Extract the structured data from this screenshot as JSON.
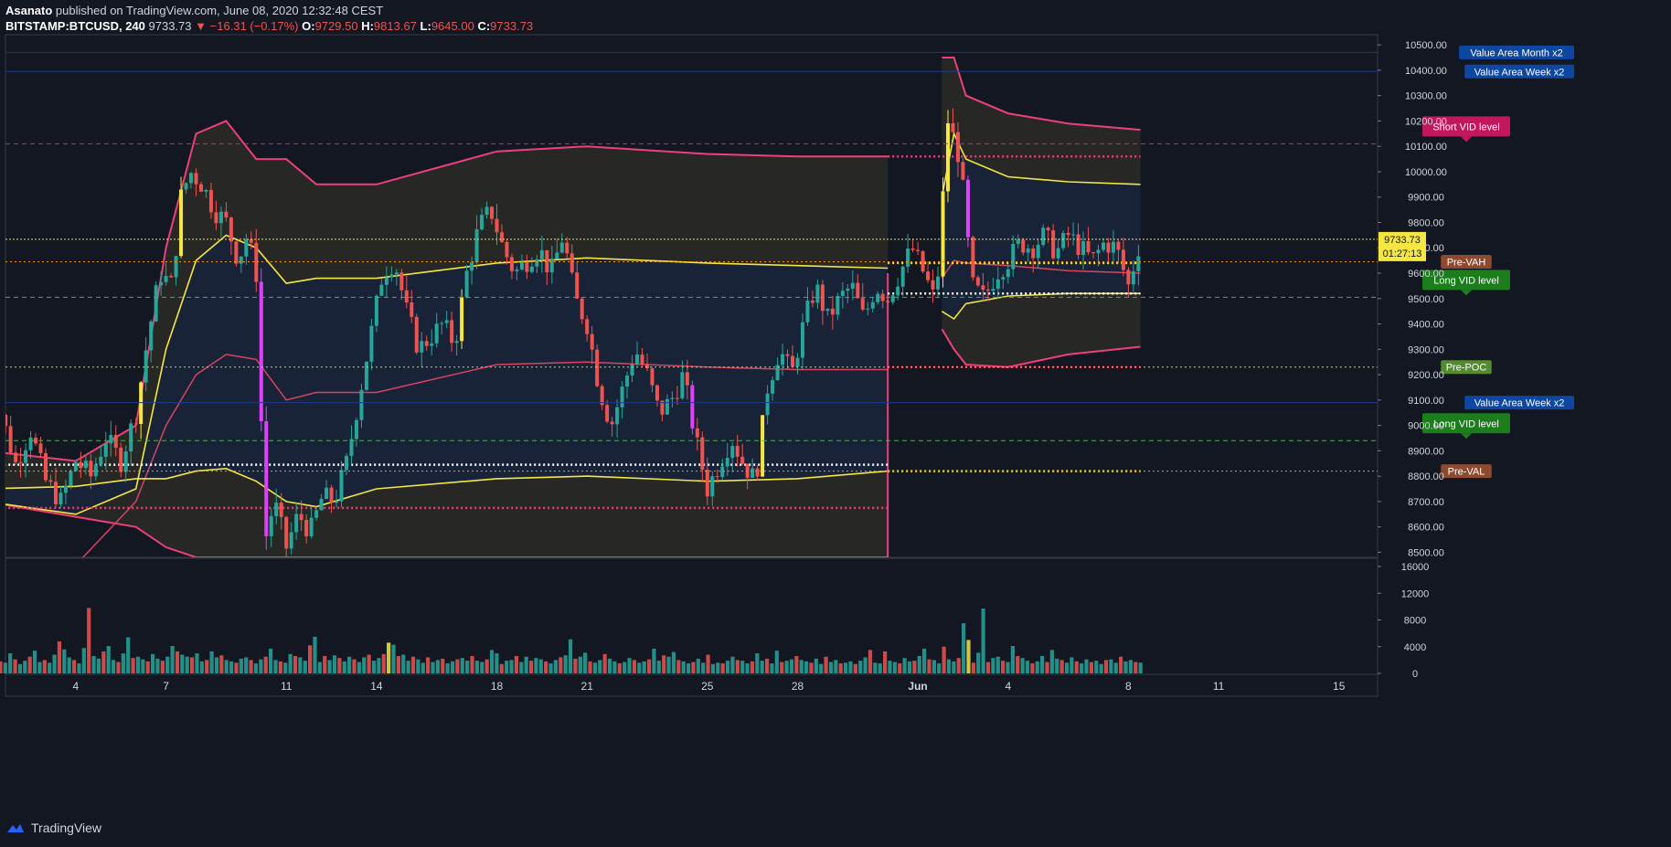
{
  "header": {
    "author": "Asanato",
    "published": "published on TradingView.com, June 08, 2020 12:32:48 CEST",
    "symbol": "BITSTAMP:BTCUSD, 240",
    "last": "9733.73",
    "change": "−16.31 (−0.17%)",
    "o_label": "O:",
    "o": "9729.50",
    "h_label": "H:",
    "h": "9813.67",
    "l_label": "L:",
    "l": "9645.00",
    "c_label": "C:",
    "c": "9733.73"
  },
  "footer": {
    "brand": "TradingView"
  },
  "price_tag": {
    "price": "9733.73",
    "countdown": "01:27:13"
  },
  "colors": {
    "background": "#131722",
    "bull": "#26a69a",
    "bear": "#ef5350",
    "magenta": "#e040fb",
    "yellow": "#f5e642",
    "band": "#ec407a",
    "vol_bull": "#26a69a",
    "vol_bear": "#ef5350"
  },
  "chart_data": {
    "type": "candlestick",
    "price_axis": {
      "ticks": [
        "10500.00",
        "10400.00",
        "10300.00",
        "10200.00",
        "10100.00",
        "10000.00",
        "9900.00",
        "9800.00",
        "9700.00",
        "9600.00",
        "9500.00",
        "9400.00",
        "9300.00",
        "9200.00",
        "9100.00",
        "9000.00",
        "8900.00",
        "8800.00",
        "8700.00",
        "8600.00",
        "8500.00"
      ],
      "range": [
        8480,
        10540
      ]
    },
    "volume_axis": {
      "ticks": [
        "16000",
        "12000",
        "8000",
        "4000",
        "0"
      ],
      "range": [
        0,
        16000
      ]
    },
    "time_axis": {
      "ticks": [
        "4",
        "7",
        "11",
        "14",
        "18",
        "21",
        "25",
        "28",
        "Jun",
        "4",
        "8",
        "11",
        "15"
      ],
      "tick_days": [
        4,
        7,
        11,
        14,
        18,
        21,
        25,
        28,
        32,
        35,
        39,
        42,
        46
      ]
    },
    "levels": [
      {
        "label": "Value Area Month x2",
        "price": 10470,
        "color": "#1e3a8a",
        "style": "solid"
      },
      {
        "label": "Value Area Week x2",
        "price": 10395,
        "color": "#1e3a8a",
        "style": "solid"
      },
      {
        "label": "Short VID level",
        "price": 10110,
        "color": "#e91e63",
        "style": "dashed"
      },
      {
        "label": "Pre-VAH",
        "price": 9645,
        "color": "#ff9800",
        "style": "dotted"
      },
      {
        "label": "Long VID level",
        "price": 9505,
        "color": "#4caf50",
        "style": "dashed"
      },
      {
        "label": "Pre-POC",
        "price": 9230,
        "color": "#cddc39",
        "style": "dotted"
      },
      {
        "label": "Value Area Week x2",
        "price": 9090,
        "color": "#1e3a8a",
        "style": "solid"
      },
      {
        "label": "Long VID level",
        "price": 8940,
        "color": "#4caf50",
        "style": "dashed"
      },
      {
        "label": "Pre-VAL",
        "price": 8820,
        "color": "#ff9800",
        "style": "dotted"
      }
    ],
    "label_styles": [
      {
        "bg": "#0d47a1",
        "fg": "#ffffff"
      },
      {
        "bg": "#0d47a1",
        "fg": "#ffffff"
      },
      {
        "bg": "#c2185b",
        "fg": "#ffffff"
      },
      {
        "bg": "#8d4a2e",
        "fg": "#ffffff"
      },
      {
        "bg": "#1b7d1b",
        "fg": "#ffffff"
      },
      {
        "bg": "#558b2f",
        "fg": "#ffffff"
      },
      {
        "bg": "#0d47a1",
        "fg": "#ffffff"
      },
      {
        "bg": "#1b7d1b",
        "fg": "#ffffff"
      },
      {
        "bg": "#8d4a2e",
        "fg": "#ffffff"
      }
    ],
    "month_period": {
      "start_day": 1.0,
      "end_day": 31.0,
      "upper_outer": [
        [
          1,
          8900
        ],
        [
          4,
          8860
        ],
        [
          6,
          9000
        ],
        [
          7,
          9700
        ],
        [
          8,
          10150
        ],
        [
          9,
          10200
        ],
        [
          10,
          10050
        ],
        [
          11,
          10050
        ],
        [
          12,
          9950
        ],
        [
          14,
          9950
        ],
        [
          18,
          10080
        ],
        [
          21,
          10100
        ],
        [
          25,
          10070
        ],
        [
          28,
          10060
        ],
        [
          31,
          10060
        ]
      ],
      "upper_inner": [
        [
          1,
          8700
        ],
        [
          4,
          8650
        ],
        [
          6,
          8750
        ],
        [
          7,
          9300
        ],
        [
          8,
          9650
        ],
        [
          9,
          9750
        ],
        [
          10,
          9700
        ],
        [
          11,
          9560
        ],
        [
          12,
          9580
        ],
        [
          14,
          9580
        ],
        [
          18,
          9640
        ],
        [
          21,
          9660
        ],
        [
          25,
          9640
        ],
        [
          28,
          9630
        ],
        [
          31,
          9620
        ]
      ],
      "mid": [
        [
          1,
          8300
        ],
        [
          4,
          8450
        ],
        [
          6,
          8700
        ],
        [
          7,
          9000
        ],
        [
          8,
          9200
        ],
        [
          9,
          9280
        ],
        [
          10,
          9260
        ],
        [
          11,
          9100
        ],
        [
          12,
          9130
        ],
        [
          14,
          9130
        ],
        [
          18,
          9240
        ],
        [
          21,
          9250
        ],
        [
          25,
          9230
        ],
        [
          28,
          9220
        ],
        [
          31,
          9220
        ]
      ],
      "lower_inner": [
        [
          1,
          8750
        ],
        [
          4,
          8760
        ],
        [
          6,
          8790
        ],
        [
          7,
          8790
        ],
        [
          8,
          8820
        ],
        [
          9,
          8830
        ],
        [
          10,
          8780
        ],
        [
          11,
          8700
        ],
        [
          12,
          8680
        ],
        [
          14,
          8750
        ],
        [
          18,
          8790
        ],
        [
          21,
          8800
        ],
        [
          25,
          8780
        ],
        [
          28,
          8790
        ],
        [
          31,
          8820
        ]
      ],
      "lower_outer": [
        [
          1,
          8700
        ],
        [
          4,
          8640
        ],
        [
          6,
          8600
        ],
        [
          7,
          8520
        ],
        [
          8,
          8480
        ],
        [
          9,
          8480
        ],
        [
          10,
          8480
        ],
        [
          11,
          8480
        ],
        [
          31,
          8480
        ]
      ]
    },
    "week_period": {
      "start_day": 32.8,
      "end_day": 39.4,
      "upper_outer": [
        [
          32.8,
          10450
        ],
        [
          33.2,
          10450
        ],
        [
          33.6,
          10300
        ],
        [
          35,
          10230
        ],
        [
          37,
          10190
        ],
        [
          39.4,
          10165
        ]
      ],
      "upper_inner": [
        [
          32.8,
          9900
        ],
        [
          33.2,
          10150
        ],
        [
          33.6,
          10050
        ],
        [
          35,
          9980
        ],
        [
          37,
          9960
        ],
        [
          39.4,
          9950
        ]
      ],
      "mid": [
        [
          32.8,
          9580
        ],
        [
          33.2,
          9650
        ],
        [
          33.6,
          9640
        ],
        [
          35,
          9630
        ],
        [
          37,
          9610
        ],
        [
          39.4,
          9600
        ]
      ],
      "lower_inner": [
        [
          32.8,
          9450
        ],
        [
          33.2,
          9420
        ],
        [
          33.6,
          9480
        ],
        [
          35,
          9510
        ],
        [
          37,
          9520
        ],
        [
          39.4,
          9520
        ]
      ],
      "lower_outer": [
        [
          32.8,
          9380
        ],
        [
          33.2,
          9300
        ],
        [
          33.6,
          9240
        ],
        [
          35,
          9230
        ],
        [
          37,
          9280
        ],
        [
          39.4,
          9310
        ]
      ]
    },
    "price_path": [
      [
        1,
        8920
      ],
      [
        1.5,
        9050
      ],
      [
        2,
        8850
      ],
      [
        2.5,
        8980
      ],
      [
        3,
        8780
      ],
      [
        3.5,
        8700
      ],
      [
        4,
        8860
      ],
      [
        4.5,
        8800
      ],
      [
        5,
        8950
      ],
      [
        5.5,
        8860
      ],
      [
        6,
        9050
      ],
      [
        6.4,
        9350
      ],
      [
        6.8,
        9600
      ],
      [
        7.2,
        9550
      ],
      [
        7.5,
        9900
      ],
      [
        7.8,
        10000
      ],
      [
        8.2,
        9950
      ],
      [
        8.6,
        9850
      ],
      [
        9,
        9800
      ],
      [
        9.4,
        9650
      ],
      [
        9.7,
        9750
      ],
      [
        10,
        9600
      ],
      [
        10.3,
        8550
      ],
      [
        10.6,
        8700
      ],
      [
        11,
        8520
      ],
      [
        11.4,
        8650
      ],
      [
        11.8,
        8580
      ],
      [
        12.2,
        8720
      ],
      [
        12.6,
        8700
      ],
      [
        13,
        8850
      ],
      [
        13.4,
        9100
      ],
      [
        13.8,
        9350
      ],
      [
        14.2,
        9600
      ],
      [
        14.6,
        9650
      ],
      [
        15,
        9450
      ],
      [
        15.4,
        9300
      ],
      [
        15.8,
        9350
      ],
      [
        16.2,
        9400
      ],
      [
        16.6,
        9320
      ],
      [
        17,
        9600
      ],
      [
        17.4,
        9780
      ],
      [
        17.8,
        9850
      ],
      [
        18.2,
        9700
      ],
      [
        18.6,
        9600
      ],
      [
        19,
        9650
      ],
      [
        19.4,
        9700
      ],
      [
        19.8,
        9600
      ],
      [
        20.2,
        9750
      ],
      [
        20.6,
        9500
      ],
      [
        21,
        9400
      ],
      [
        21.4,
        9150
      ],
      [
        21.8,
        9000
      ],
      [
        22.2,
        9150
      ],
      [
        22.6,
        9300
      ],
      [
        23,
        9200
      ],
      [
        23.4,
        9050
      ],
      [
        23.8,
        9100
      ],
      [
        24.2,
        9200
      ],
      [
        24.6,
        8950
      ],
      [
        25,
        8750
      ],
      [
        25.4,
        8850
      ],
      [
        25.8,
        8950
      ],
      [
        26.2,
        8850
      ],
      [
        26.6,
        8780
      ],
      [
        27,
        9150
      ],
      [
        27.4,
        9300
      ],
      [
        27.8,
        9200
      ],
      [
        28.2,
        9400
      ],
      [
        28.6,
        9550
      ],
      [
        29,
        9420
      ],
      [
        29.4,
        9500
      ],
      [
        29.8,
        9550
      ],
      [
        30.2,
        9420
      ],
      [
        30.6,
        9550
      ],
      [
        31,
        9500
      ],
      [
        31.4,
        9600
      ],
      [
        31.8,
        9700
      ],
      [
        32.2,
        9600
      ],
      [
        32.6,
        9480
      ],
      [
        33,
        10200
      ],
      [
        33.4,
        10050
      ],
      [
        33.8,
        9550
      ],
      [
        34.2,
        9500
      ],
      [
        34.6,
        9600
      ],
      [
        35,
        9650
      ],
      [
        35.4,
        9720
      ],
      [
        35.8,
        9700
      ],
      [
        36.2,
        9750
      ],
      [
        36.6,
        9680
      ],
      [
        37,
        9750
      ],
      [
        37.4,
        9700
      ],
      [
        37.8,
        9650
      ],
      [
        38.2,
        9720
      ],
      [
        38.6,
        9700
      ],
      [
        39,
        9550
      ],
      [
        39.4,
        9733
      ]
    ],
    "volume_seed": [
      2200,
      1500,
      2600,
      1800,
      1600,
      3000,
      2100,
      1400,
      1900,
      2500,
      3400,
      1700,
      2000,
      1600,
      2800,
      4800,
      3600,
      2400,
      2000,
      1500,
      3800,
      9800,
      2600,
      2200,
      3300,
      4100,
      2000,
      1700,
      3000,
      5400,
      2300,
      2500,
      2100,
      1800,
      2900,
      2200,
      1900,
      2500,
      4100,
      3300,
      2800,
      2500,
      2400,
      3000,
      1800,
      2000,
      3300,
      2400,
      2700,
      2000,
      1800,
      1600,
      2200,
      2400,
      2000,
      1500,
      2100,
      2500,
      3700,
      2000,
      1800,
      1600,
      2900,
      2600,
      2400,
      1900,
      4200,
      5500,
      1700,
      2600,
      2000,
      2700,
      2300,
      1800,
      2500,
      2100,
      1700,
      2400,
      2800,
      1900,
      2300,
      2900,
      4600,
      4300,
      2600,
      2800,
      1900,
      2500,
      2100,
      1600,
      2400,
      1700,
      2000,
      2200,
      1500,
      1800,
      2100,
      2300,
      1900,
      2600,
      1900,
      1700,
      2100,
      3500,
      3000,
      1400,
      1900,
      2000,
      2600,
      1700,
      2500,
      1900,
      2300,
      2100,
      1800,
      1500,
      2000,
      2400,
      2700,
      5100,
      2200,
      2500,
      3100,
      1800,
      1600,
      2000,
      2900,
      2200,
      1800,
      1500,
      1700,
      2300,
      2000,
      1600,
      1800,
      2100,
      3700,
      1900,
      2700,
      2500,
      3200,
      2000,
      1800,
      1500,
      1700,
      2200,
      1600,
      2800,
      1400,
      1600,
      1500,
      1900,
      2500,
      2000,
      1900,
      1500,
      1800,
      3000,
      1900,
      2200,
      1500,
      3400,
      1700,
      1900,
      2100,
      2600,
      2000,
      1800,
      1600,
      2200,
      1400,
      2500,
      1700,
      2000,
      1500,
      1600,
      1800,
      1400,
      1900,
      2400,
      3500,
      1600,
      1500,
      3300,
      1900,
      1700,
      1500,
      2300,
      1800,
      1900,
      2600,
      3700,
      2100,
      2000,
      1500,
      4000,
      2100,
      1800,
      2300,
      7500,
      5000,
      1600,
      3100,
      9700,
      1700,
      2300,
      2500,
      1900,
      1700,
      4100,
      2600,
      2300,
      1900,
      1500,
      1800,
      2600,
      1700,
      3500,
      2200,
      2000,
      1600,
      2400,
      1800,
      1500,
      2100,
      1700,
      1900,
      1400,
      2000,
      2100,
      1600,
      2500,
      1800,
      2000,
      1700,
      1600
    ]
  }
}
